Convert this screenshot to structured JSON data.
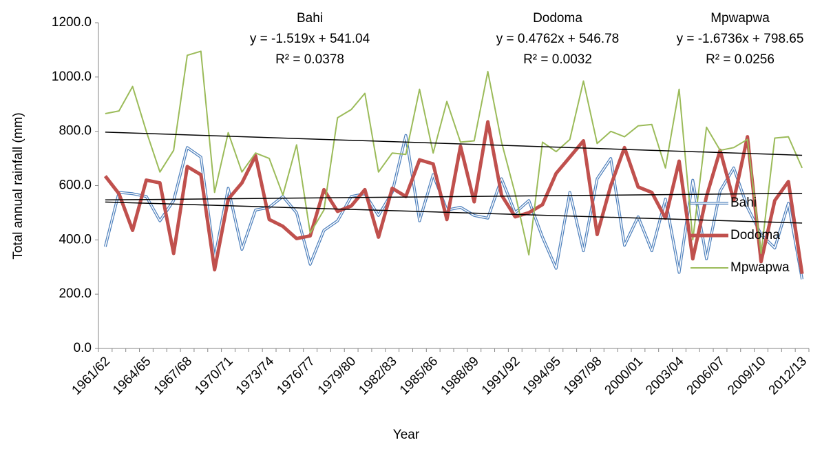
{
  "chart_data": {
    "type": "line",
    "x_label": "Year",
    "y_label": "Total annual rainfall (mm)",
    "categories": [
      "1961/62",
      null,
      null,
      "1964/65",
      null,
      null,
      "1967/68",
      null,
      null,
      "1970/71",
      null,
      null,
      "1973/74",
      null,
      null,
      "1976/77",
      null,
      null,
      "1979/80",
      null,
      null,
      "1982/83",
      null,
      null,
      "1985/86",
      null,
      null,
      "1988/89",
      null,
      null,
      "1991/92",
      null,
      null,
      "1994/95",
      null,
      null,
      "1997/98",
      null,
      null,
      "2000/01",
      null,
      null,
      "2003/04",
      null,
      null,
      "2006/07",
      null,
      null,
      "2009/10",
      null,
      null,
      "2012/13"
    ],
    "series": [
      {
        "name": "Bahi",
        "color": "#4f81bd",
        "style": "double",
        "values": [
          375,
          575,
          570,
          560,
          470,
          545,
          740,
          705,
          330,
          590,
          365,
          510,
          520,
          560,
          500,
          310,
          435,
          470,
          560,
          570,
          490,
          575,
          785,
          470,
          640,
          510,
          520,
          490,
          480,
          625,
          500,
          545,
          410,
          295,
          575,
          360,
          625,
          700,
          380,
          485,
          360,
          550,
          280,
          620,
          330,
          580,
          665,
          520,
          420,
          370,
          535,
          255
        ],
        "trendline": {
          "slope": -1.519,
          "intercept": 541.04,
          "label": [
            "Bahi",
            "y = -1.519x + 541.04",
            "R² = 0.0378"
          ]
        }
      },
      {
        "name": "Dodoma",
        "color": "#c0504d",
        "style": "thick",
        "values": [
          635,
          570,
          435,
          620,
          610,
          350,
          670,
          640,
          290,
          550,
          610,
          710,
          475,
          450,
          405,
          415,
          585,
          505,
          525,
          585,
          410,
          590,
          560,
          695,
          680,
          475,
          745,
          540,
          835,
          565,
          485,
          500,
          530,
          645,
          705,
          765,
          420,
          600,
          740,
          595,
          575,
          480,
          690,
          330,
          560,
          730,
          545,
          780,
          320,
          545,
          615,
          275
        ],
        "trendline": {
          "slope": 0.4762,
          "intercept": 546.78,
          "label": [
            "Dodoma",
            "y = 0.4762x + 546.78",
            "R² = 0.0032"
          ]
        }
      },
      {
        "name": "Mpwapwa",
        "color": "#9bbb59",
        "style": "thin",
        "values": [
          865,
          875,
          965,
          800,
          650,
          730,
          1080,
          1095,
          575,
          795,
          650,
          720,
          700,
          565,
          750,
          425,
          510,
          850,
          880,
          940,
          650,
          720,
          715,
          955,
          720,
          910,
          760,
          765,
          1020,
          760,
          570,
          345,
          760,
          725,
          770,
          985,
          755,
          800,
          780,
          820,
          825,
          665,
          955,
          400,
          815,
          730,
          740,
          770,
          350,
          775,
          780,
          665
        ],
        "trendline": {
          "slope": -1.6736,
          "intercept": 798.65,
          "label": [
            "Mpwapwa",
            "y = -1.6736x + 798.65",
            "R² = 0.0256"
          ]
        }
      }
    ],
    "ylim": [
      0,
      1200
    ],
    "yticks": [
      {
        "value": 0,
        "label": "0.0"
      },
      {
        "value": 200,
        "label": "200.0"
      },
      {
        "value": 400,
        "label": "400.0"
      },
      {
        "value": 600,
        "label": "600.0"
      },
      {
        "value": 800,
        "label": "800.0"
      },
      {
        "value": 1000,
        "label": "1000.0"
      },
      {
        "value": 1200,
        "label": "1200.0"
      }
    ],
    "legend": "right",
    "grid": false
  }
}
